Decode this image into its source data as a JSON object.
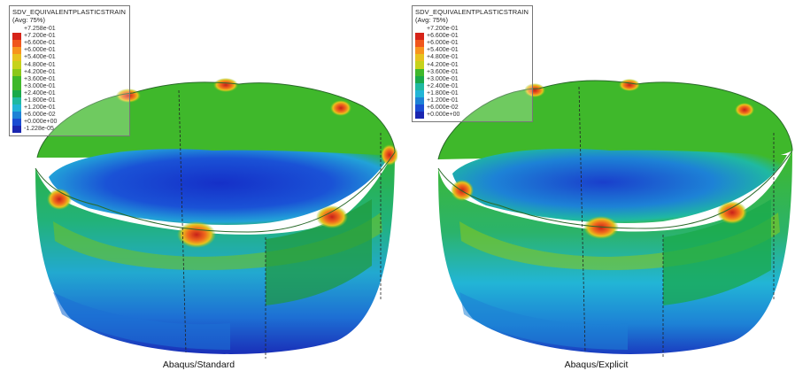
{
  "panels": [
    {
      "caption": "Abaqus/Standard",
      "legend": {
        "variable": "SDV_EQUIVALENTPLASTICSTRAIN",
        "averaging": "(Avg: 75%)",
        "levels": [
          "+7.258e-01",
          "+7.200e-01",
          "+6.600e-01",
          "+6.000e-01",
          "+5.400e-01",
          "+4.800e-01",
          "+4.200e-01",
          "+3.600e-01",
          "+3.000e-01",
          "+2.400e-01",
          "+1.800e-01",
          "+1.200e-01",
          "+6.000e-02",
          "+0.000e+00",
          "-1.228e-05"
        ]
      }
    },
    {
      "caption": "Abaqus/Explicit",
      "legend": {
        "variable": "SDV_EQUIVALENTPLASTICSTRAIN",
        "averaging": "(Avg: 75%)",
        "levels": [
          "+7.200e-01",
          "+6.600e-01",
          "+6.000e-01",
          "+5.400e-01",
          "+4.800e-01",
          "+4.200e-01",
          "+3.600e-01",
          "+3.000e-01",
          "+2.400e-01",
          "+1.800e-01",
          "+1.200e-01",
          "+6.000e-02",
          "+0.000e+00"
        ]
      }
    }
  ],
  "colors": {
    "contour_scale": [
      "#ffffff",
      "#d62419",
      "#f0561c",
      "#f7941d",
      "#e7c21e",
      "#c6d21b",
      "#8bc81a",
      "#3fb82b",
      "#19a94a",
      "#1fb9a1",
      "#22b5d6",
      "#1d82d6",
      "#1a4cd2",
      "#1a26b0"
    ]
  }
}
